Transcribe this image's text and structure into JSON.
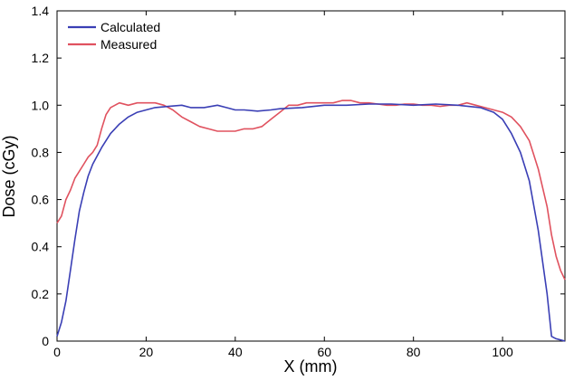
{
  "chart_data": {
    "type": "line",
    "xlabel": "X (mm)",
    "ylabel": "Dose (cGy)",
    "xlim": [
      0,
      114
    ],
    "ylim": [
      0,
      1.4
    ],
    "x_ticks": [
      0,
      20,
      40,
      60,
      80,
      100
    ],
    "y_ticks": [
      0,
      0.2,
      0.4,
      0.6,
      0.8,
      1.0,
      1.2,
      1.4
    ],
    "y_tick_labels": [
      "0",
      "0.2",
      "0.4",
      "0.6",
      "0.8",
      "1.0",
      "1.2",
      "1.4"
    ],
    "x_tick_labels": [
      "0",
      "20",
      "40",
      "60",
      "80",
      "100"
    ],
    "grid": false,
    "legend_position": "top-left",
    "series": [
      {
        "name": "Calculated",
        "color": "#3a3fb5",
        "x": [
          0,
          1,
          2,
          3,
          4,
          5,
          6,
          7,
          8,
          10,
          12,
          14,
          16,
          18,
          20,
          22,
          25,
          28,
          30,
          33,
          36,
          38,
          40,
          42,
          45,
          48,
          50,
          55,
          60,
          65,
          70,
          75,
          80,
          85,
          90,
          95,
          98,
          100,
          102,
          104,
          106,
          108,
          110,
          111,
          112,
          113,
          114
        ],
        "y": [
          0.02,
          0.08,
          0.17,
          0.3,
          0.43,
          0.55,
          0.63,
          0.7,
          0.75,
          0.82,
          0.88,
          0.92,
          0.95,
          0.97,
          0.98,
          0.99,
          0.995,
          1.0,
          0.99,
          0.99,
          1.0,
          0.99,
          0.98,
          0.98,
          0.975,
          0.98,
          0.985,
          0.99,
          1.0,
          1.0,
          1.005,
          1.005,
          1.0,
          1.005,
          1.0,
          0.99,
          0.97,
          0.94,
          0.88,
          0.8,
          0.68,
          0.47,
          0.2,
          0.02,
          0.01,
          0.005,
          0.0
        ]
      },
      {
        "name": "Measured",
        "color": "#e0525f",
        "x": [
          0,
          1,
          2,
          3,
          4,
          5,
          6,
          7,
          8,
          9,
          10,
          11,
          12,
          13,
          14,
          16,
          18,
          20,
          22,
          24,
          26,
          28,
          30,
          32,
          34,
          36,
          38,
          40,
          42,
          44,
          46,
          48,
          50,
          52,
          54,
          56,
          58,
          60,
          62,
          64,
          66,
          68,
          70,
          72,
          74,
          76,
          78,
          80,
          82,
          84,
          86,
          88,
          90,
          92,
          94,
          96,
          98,
          100,
          102,
          104,
          106,
          108,
          110,
          111,
          112,
          113,
          114
        ],
        "y": [
          0.5,
          0.53,
          0.6,
          0.64,
          0.69,
          0.72,
          0.75,
          0.78,
          0.8,
          0.83,
          0.9,
          0.96,
          0.99,
          1.0,
          1.01,
          1.0,
          1.01,
          1.01,
          1.01,
          1.0,
          0.98,
          0.95,
          0.93,
          0.91,
          0.9,
          0.89,
          0.89,
          0.89,
          0.9,
          0.9,
          0.91,
          0.94,
          0.97,
          1.0,
          1.0,
          1.01,
          1.01,
          1.01,
          1.01,
          1.02,
          1.02,
          1.01,
          1.01,
          1.005,
          1.0,
          1.0,
          1.005,
          1.005,
          1.0,
          1.0,
          0.995,
          1.0,
          1.0,
          1.01,
          1.0,
          0.99,
          0.98,
          0.97,
          0.95,
          0.91,
          0.85,
          0.73,
          0.57,
          0.45,
          0.36,
          0.3,
          0.26
        ]
      }
    ]
  }
}
